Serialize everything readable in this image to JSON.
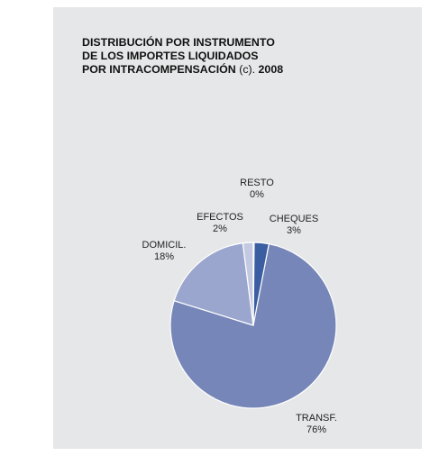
{
  "title": {
    "line1": "DISTRIBUCIÓN POR INSTRUMENTO",
    "line2": "DE LOS IMPORTES LIQUIDADOS",
    "line3": "POR INTRACOMPENSACIÓN",
    "note": "(c).",
    "year": "2008"
  },
  "chart_data": {
    "type": "pie",
    "title": "DISTRIBUCIÓN POR INSTRUMENTO DE LOS IMPORTES LIQUIDADOS POR INTRACOMPENSACIÓN (c). 2008",
    "slices": [
      {
        "label": "CHEQUES",
        "value": 3,
        "value_label": "3%",
        "color": "#3b5da1"
      },
      {
        "label": "TRANSF.",
        "value": 76,
        "value_label": "76%",
        "color": "#7686b8"
      },
      {
        "label": "DOMICIL.",
        "value": 18,
        "value_label": "18%",
        "color": "#9aa6cd"
      },
      {
        "label": "EFECTOS",
        "value": 2,
        "value_label": "2%",
        "color": "#c3c9e1"
      },
      {
        "label": "RESTO",
        "value": 0,
        "value_label": "0%",
        "color": "#dfe2ef"
      }
    ],
    "legend": "none"
  }
}
